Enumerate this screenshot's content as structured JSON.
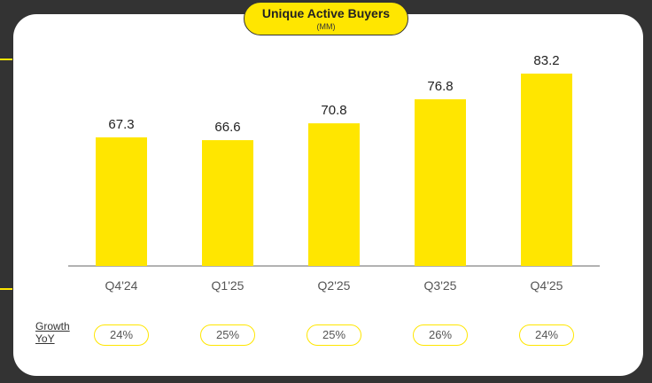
{
  "chart_data": {
    "type": "bar",
    "title": "Unique Active Buyers",
    "subtitle": "(MM)",
    "categories": [
      "Q4'24",
      "Q1'25",
      "Q2'25",
      "Q3'25",
      "Q4'25"
    ],
    "values": [
      67.3,
      66.6,
      70.8,
      76.8,
      83.2
    ],
    "data_labels": [
      "67.3",
      "66.6",
      "70.8",
      "76.8",
      "83.2"
    ],
    "bar_color": "#ffe600",
    "grid": false,
    "ylim": [
      35,
      85
    ]
  },
  "growth": {
    "label_line1": "Growth",
    "label_line2": "YoY",
    "values": [
      "24%",
      "25%",
      "25%",
      "26%",
      "24%"
    ]
  },
  "colors": {
    "accent": "#ffe600",
    "background": "#333333"
  }
}
